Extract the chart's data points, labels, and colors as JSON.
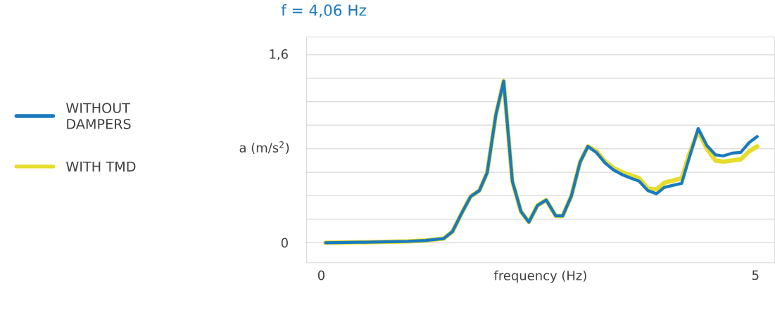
{
  "chart_data": {
    "type": "line",
    "title": "f = 4,06 Hz",
    "xlabel": "frequency (Hz)",
    "ylabel": "a (m/s$^{2}$)",
    "xlim": [
      -0.17,
      5.22
    ],
    "ylim": [
      -0.17,
      1.75
    ],
    "xticks": [
      0,
      5
    ],
    "yticks": [
      0,
      {
        "value": 0.2,
        "label": null
      },
      {
        "value": 0.4,
        "label": null
      },
      {
        "value": 0.6,
        "label": null
      },
      {
        "value": 0.8,
        "label": null
      },
      {
        "value": 1.0,
        "label": null
      },
      {
        "value": 1.2,
        "label": null
      },
      {
        "value": 1.4,
        "label": null
      },
      {
        "value": 1.6,
        "label": "1,6"
      }
    ],
    "grid": "y",
    "legend": "left",
    "x": [
      0.05,
      0.5,
      1.0,
      1.2,
      1.41,
      1.51,
      1.62,
      1.72,
      1.82,
      1.91,
      2.01,
      2.1,
      2.2,
      2.3,
      2.39,
      2.49,
      2.59,
      2.7,
      2.78,
      2.88,
      2.98,
      3.07,
      3.17,
      3.27,
      3.37,
      3.47,
      3.56,
      3.66,
      3.76,
      3.86,
      3.95,
      4.05,
      4.15,
      4.24,
      4.34,
      4.44,
      4.54,
      4.63,
      4.73,
      4.83,
      4.93,
      5.02
    ],
    "series": [
      {
        "name": "WITHOUT DAMPERS",
        "color": "#1a7abf",
        "values": [
          0,
          0.005,
          0.012,
          0.02,
          0.036,
          0.095,
          0.256,
          0.394,
          0.444,
          0.596,
          1.088,
          1.375,
          0.524,
          0.265,
          0.176,
          0.318,
          0.363,
          0.229,
          0.229,
          0.399,
          0.686,
          0.82,
          0.766,
          0.677,
          0.617,
          0.578,
          0.551,
          0.524,
          0.444,
          0.417,
          0.471,
          0.489,
          0.506,
          0.73,
          0.972,
          0.828,
          0.748,
          0.739,
          0.762,
          0.769,
          0.855,
          0.904
        ]
      },
      {
        "name": "WITH TMD",
        "color": "#e6dc2a",
        "values": [
          0,
          0.005,
          0.012,
          0.02,
          0.036,
          0.095,
          0.256,
          0.394,
          0.444,
          0.596,
          1.088,
          1.375,
          0.524,
          0.265,
          0.176,
          0.318,
          0.363,
          0.229,
          0.229,
          0.399,
          0.686,
          0.82,
          0.78,
          0.69,
          0.635,
          0.6,
          0.575,
          0.55,
          0.46,
          0.453,
          0.51,
          0.53,
          0.55,
          0.76,
          0.95,
          0.8,
          0.7,
          0.69,
          0.7,
          0.71,
          0.78,
          0.82
        ]
      }
    ]
  }
}
